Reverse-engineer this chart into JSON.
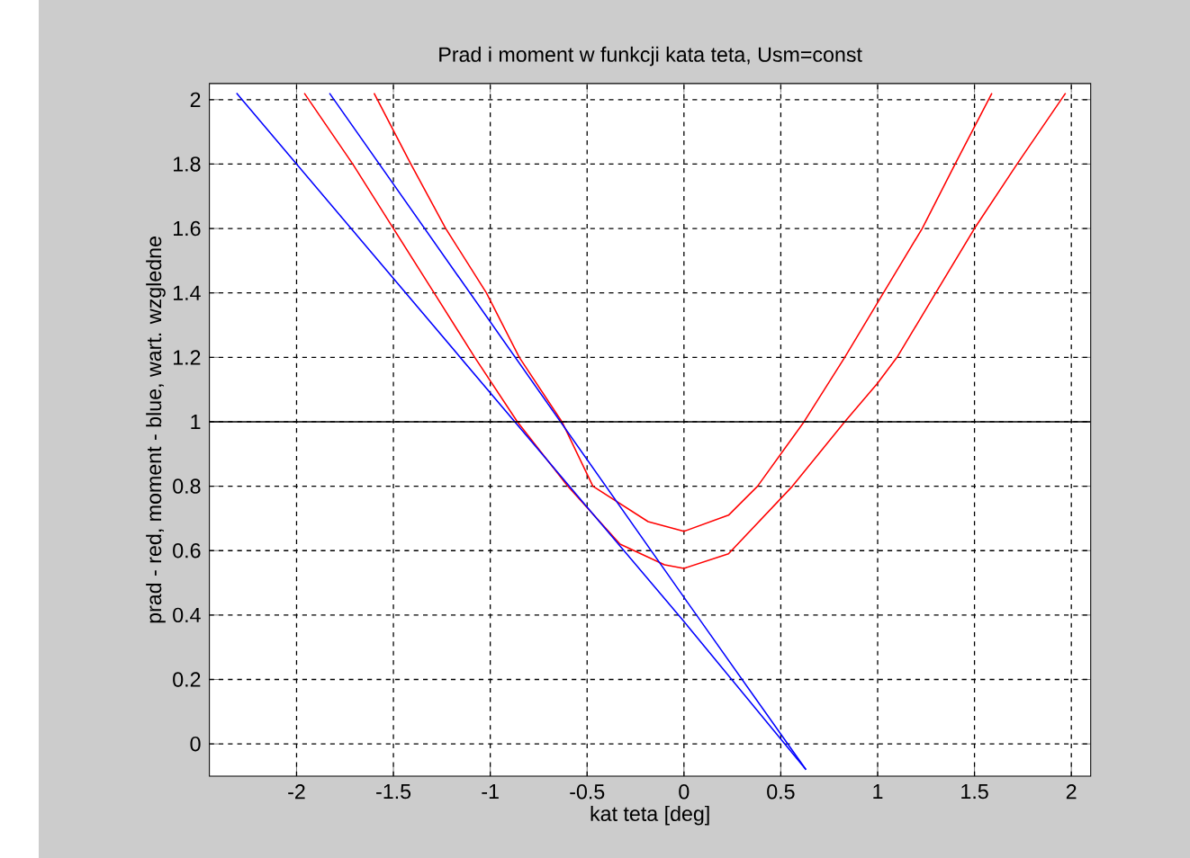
{
  "chart_data": {
    "type": "line",
    "title": "Prad i moment w funkcji kata teta, Usm=const",
    "xlabel": "kat teta [deg]",
    "ylabel": "prad - red, moment - blue, wart. wzgledne",
    "xlim": [
      -2.45,
      2.1
    ],
    "ylim": [
      -0.1,
      2.05
    ],
    "xticks": [
      -2,
      -1.5,
      -1,
      -0.5,
      0,
      0.5,
      1,
      1.5,
      2
    ],
    "yticks": [
      0,
      0.2,
      0.4,
      0.6,
      0.8,
      1,
      1.2,
      1.4,
      1.6,
      1.8,
      2
    ],
    "grid": true,
    "marker": "none",
    "line_style": "solid",
    "series": [
      {
        "color": "#ff0000",
        "x": [
          -1.6,
          -1.41,
          -1.23,
          -1.02,
          -0.85,
          -0.63,
          -0.47,
          -0.185,
          0,
          0.23,
          0.38,
          0.62,
          0.83,
          1.03,
          1.23,
          1.4,
          1.59
        ],
        "values": [
          2.02,
          1.8,
          1.6,
          1.4,
          1.2,
          1.0,
          0.8,
          0.69,
          0.66,
          0.71,
          0.8,
          1.0,
          1.2,
          1.4,
          1.6,
          1.8,
          2.02
        ]
      },
      {
        "color": "#ff0000",
        "x": [
          -1.96,
          -1.71,
          -1.5,
          -1.29,
          -1.08,
          -0.86,
          -0.6,
          -0.33,
          -0.1,
          0,
          0.23,
          0.56,
          0.83,
          1.0,
          1.1,
          1.3,
          1.5,
          1.72,
          1.97
        ],
        "values": [
          2.02,
          1.8,
          1.6,
          1.4,
          1.2,
          1.0,
          0.8,
          0.62,
          0.556,
          0.545,
          0.59,
          0.8,
          1.0,
          1.12,
          1.2,
          1.4,
          1.6,
          1.8,
          2.02
        ]
      },
      {
        "color": "#0000ff",
        "x": [
          -2.31,
          0,
          0.63
        ],
        "values": [
          2.02,
          0.38,
          -0.08
        ]
      },
      {
        "color": "#0000ff",
        "x": [
          -1.83,
          0,
          0.63
        ],
        "values": [
          2.02,
          0.455,
          -0.08
        ]
      }
    ],
    "ref_lines": [
      {
        "axis": "y",
        "value": 1,
        "color": "#000000",
        "line_style": "solid"
      }
    ]
  }
}
